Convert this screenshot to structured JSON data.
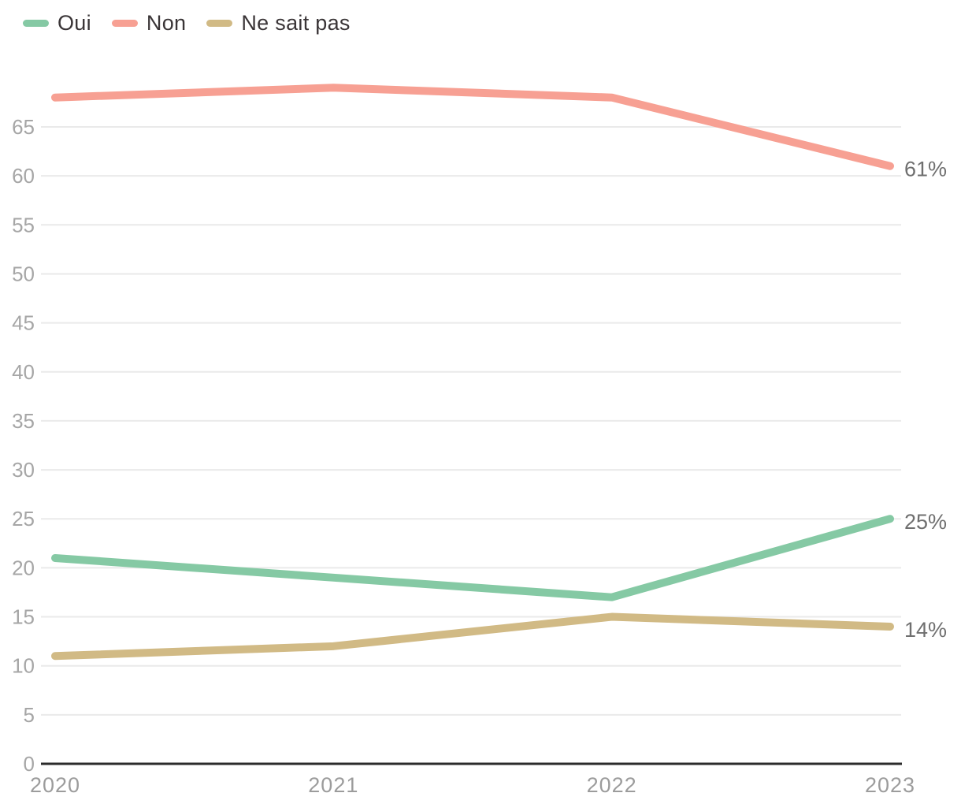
{
  "chart_data": {
    "type": "line",
    "title": "",
    "x": [
      "2020",
      "2021",
      "2022",
      "2023"
    ],
    "series": [
      {
        "name": "Oui",
        "color": "#85c9a4",
        "values": [
          21,
          19,
          17,
          25
        ],
        "end_label": "25%"
      },
      {
        "name": "Non",
        "color": "#f7a093",
        "values": [
          68,
          69,
          68,
          61
        ],
        "end_label": "61%"
      },
      {
        "name": "Ne sait pas",
        "color": "#d1ba85",
        "values": [
          11,
          12,
          15,
          14
        ],
        "end_label": "14%"
      }
    ],
    "yticks": [
      0,
      5,
      10,
      15,
      20,
      25,
      30,
      35,
      40,
      45,
      50,
      55,
      60,
      65
    ],
    "ylim": [
      0,
      70
    ],
    "xlabel": "",
    "ylabel": "",
    "grid": true,
    "legend_position": "top-left",
    "markers": false
  },
  "colors": {
    "background": "#ffffff",
    "grid_line": "#eaeaea",
    "axis_line": "#2b2b2b",
    "y_tick_label": "#a6a6a6",
    "x_tick_label": "#9c9c9c",
    "end_label": "#6f6f6f",
    "legend_text": "#3a3537"
  }
}
